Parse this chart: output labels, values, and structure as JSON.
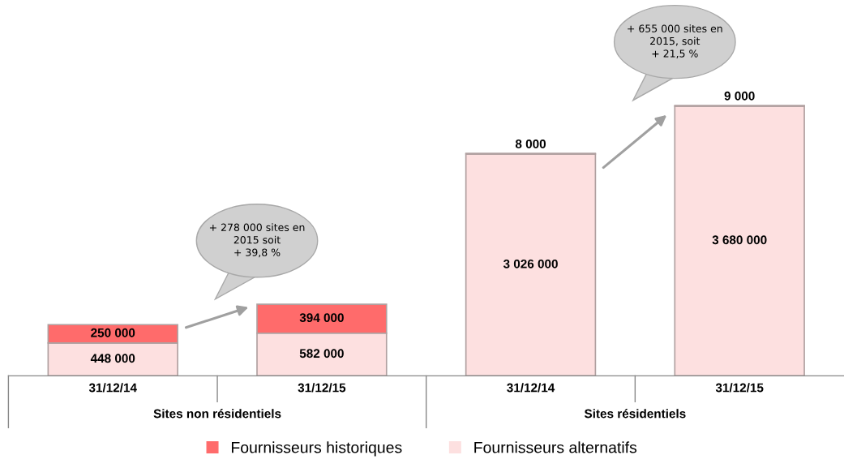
{
  "chart_data": {
    "type": "bar",
    "stacked": true,
    "data_labels": true,
    "legend": "bottom",
    "categories": [
      "31/12/14",
      "31/12/15",
      "31/12/14",
      "31/12/15"
    ],
    "series": [
      {
        "name": "Fournisseurs alternatifs",
        "color": "#fde0e0",
        "values": [
          448000,
          582000,
          3026000,
          3680000
        ]
      },
      {
        "name": "Fournisseurs historiques",
        "color": "#ff6b6b",
        "values": [
          250000,
          394000,
          8000,
          9000
        ]
      }
    ],
    "annotations": [
      "Sites non résidentiels",
      "Sites résidentiels",
      "+ 278 000 sites en\n2015 soit\n+ 39,8 %",
      "+ 655 000 sites en\n2015, soit\n+ 21,5 %"
    ]
  }
}
